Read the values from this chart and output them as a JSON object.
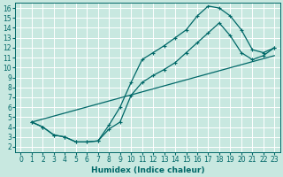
{
  "bg_color": "#c8e8e0",
  "grid_color": "#b0d8d0",
  "line_color": "#006868",
  "markersize": 2.5,
  "linewidth": 0.9,
  "xlabel": "Humidex (Indice chaleur)",
  "xlabel_fontsize": 6.5,
  "tick_fontsize": 5.5,
  "xlim": [
    -0.5,
    23.5
  ],
  "ylim": [
    1.5,
    16.5
  ],
  "xticks": [
    0,
    1,
    2,
    3,
    4,
    5,
    6,
    7,
    8,
    9,
    10,
    11,
    12,
    13,
    14,
    15,
    16,
    17,
    18,
    19,
    20,
    21,
    22,
    23
  ],
  "yticks": [
    2,
    3,
    4,
    5,
    6,
    7,
    8,
    9,
    10,
    11,
    12,
    13,
    14,
    15,
    16
  ],
  "series1_x": [
    1,
    2,
    3,
    4,
    5,
    6,
    7,
    8,
    9,
    10,
    11,
    12,
    13,
    14,
    15,
    16,
    17,
    18,
    19,
    20,
    21,
    22,
    23
  ],
  "series1_y": [
    4.5,
    4.0,
    3.2,
    3.0,
    2.5,
    2.5,
    2.6,
    4.2,
    6.0,
    8.5,
    10.8,
    11.5,
    12.2,
    13.0,
    13.8,
    15.2,
    16.2,
    16.0,
    15.2,
    13.8,
    11.8,
    11.5,
    12.0
  ],
  "series2_x": [
    1,
    2,
    3,
    4,
    5,
    6,
    7,
    8,
    9,
    10,
    11,
    12,
    13,
    14,
    15,
    16,
    17,
    18,
    19,
    20,
    21,
    22,
    23
  ],
  "series2_y": [
    4.5,
    4.0,
    3.2,
    3.0,
    2.5,
    2.5,
    2.6,
    3.8,
    4.5,
    7.2,
    8.5,
    9.2,
    9.8,
    10.5,
    11.5,
    12.5,
    13.5,
    14.5,
    13.2,
    11.5,
    10.8,
    11.2,
    12.0
  ],
  "series3_x": [
    1,
    23
  ],
  "series3_y": [
    4.5,
    11.2
  ]
}
